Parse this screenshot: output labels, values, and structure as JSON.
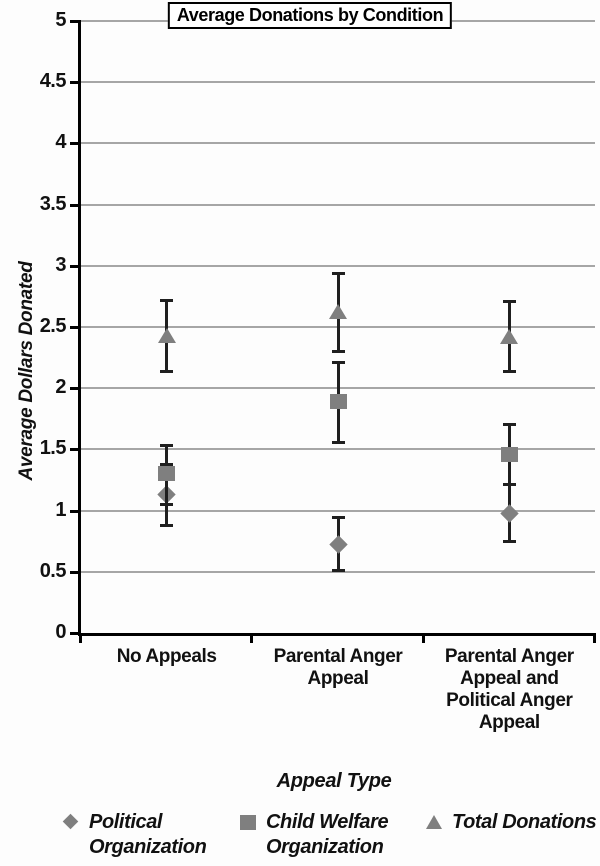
{
  "figure": {
    "title": "Average Donations by Condition"
  },
  "y_axis": {
    "label": "Average Dollars Donated",
    "tick_labels": [
      "0",
      "0.5",
      "1",
      "1.5",
      "2",
      "2.5",
      "3",
      "3.5",
      "4",
      "4.5",
      "5"
    ]
  },
  "x_axis": {
    "label": "Appeal Type",
    "category_lines": [
      [
        "No Appeals"
      ],
      [
        "Parental Anger",
        "Appeal"
      ],
      [
        "Parental Anger",
        "Appeal and",
        "Political Anger",
        "Appeal"
      ]
    ]
  },
  "legend": {
    "items": [
      {
        "marker": "diamond",
        "lines": [
          "Political",
          "Organization"
        ]
      },
      {
        "marker": "square",
        "lines": [
          "Child Welfare",
          "Organization"
        ]
      },
      {
        "marker": "triangle",
        "lines": [
          "Total Donations"
        ]
      }
    ]
  },
  "colors": {
    "marker": "#7f7f7f",
    "error_bar": "#1f1f1f",
    "gridline": "#a6a6a6",
    "axis": "#000000",
    "text": "#111111"
  },
  "chart_data": {
    "type": "scatter",
    "title": "Average Donations by Condition",
    "xlabel": "Appeal Type",
    "ylabel": "Average Dollars Donated",
    "categories": [
      "No Appeals",
      "Parental Anger Appeal",
      "Parental Anger Appeal and Political Anger Appeal"
    ],
    "ylim": [
      0,
      5
    ],
    "ytick_step": 0.5,
    "grid": true,
    "legend_position": "bottom",
    "series": [
      {
        "name": "Political Organization",
        "marker": "diamond",
        "values": [
          1.13,
          0.72,
          0.98
        ],
        "err_low": [
          0.88,
          0.51,
          0.75
        ],
        "err_high": [
          1.38,
          0.94,
          1.21
        ]
      },
      {
        "name": "Child Welfare Organization",
        "marker": "square",
        "values": [
          1.3,
          1.89,
          1.46
        ],
        "err_low": [
          1.05,
          1.56,
          1.21
        ],
        "err_high": [
          1.53,
          2.21,
          1.7
        ]
      },
      {
        "name": "Total Donations",
        "marker": "triangle",
        "values": [
          2.43,
          2.62,
          2.42
        ],
        "err_low": [
          2.14,
          2.3,
          2.14
        ],
        "err_high": [
          2.72,
          2.94,
          2.71
        ]
      }
    ]
  }
}
